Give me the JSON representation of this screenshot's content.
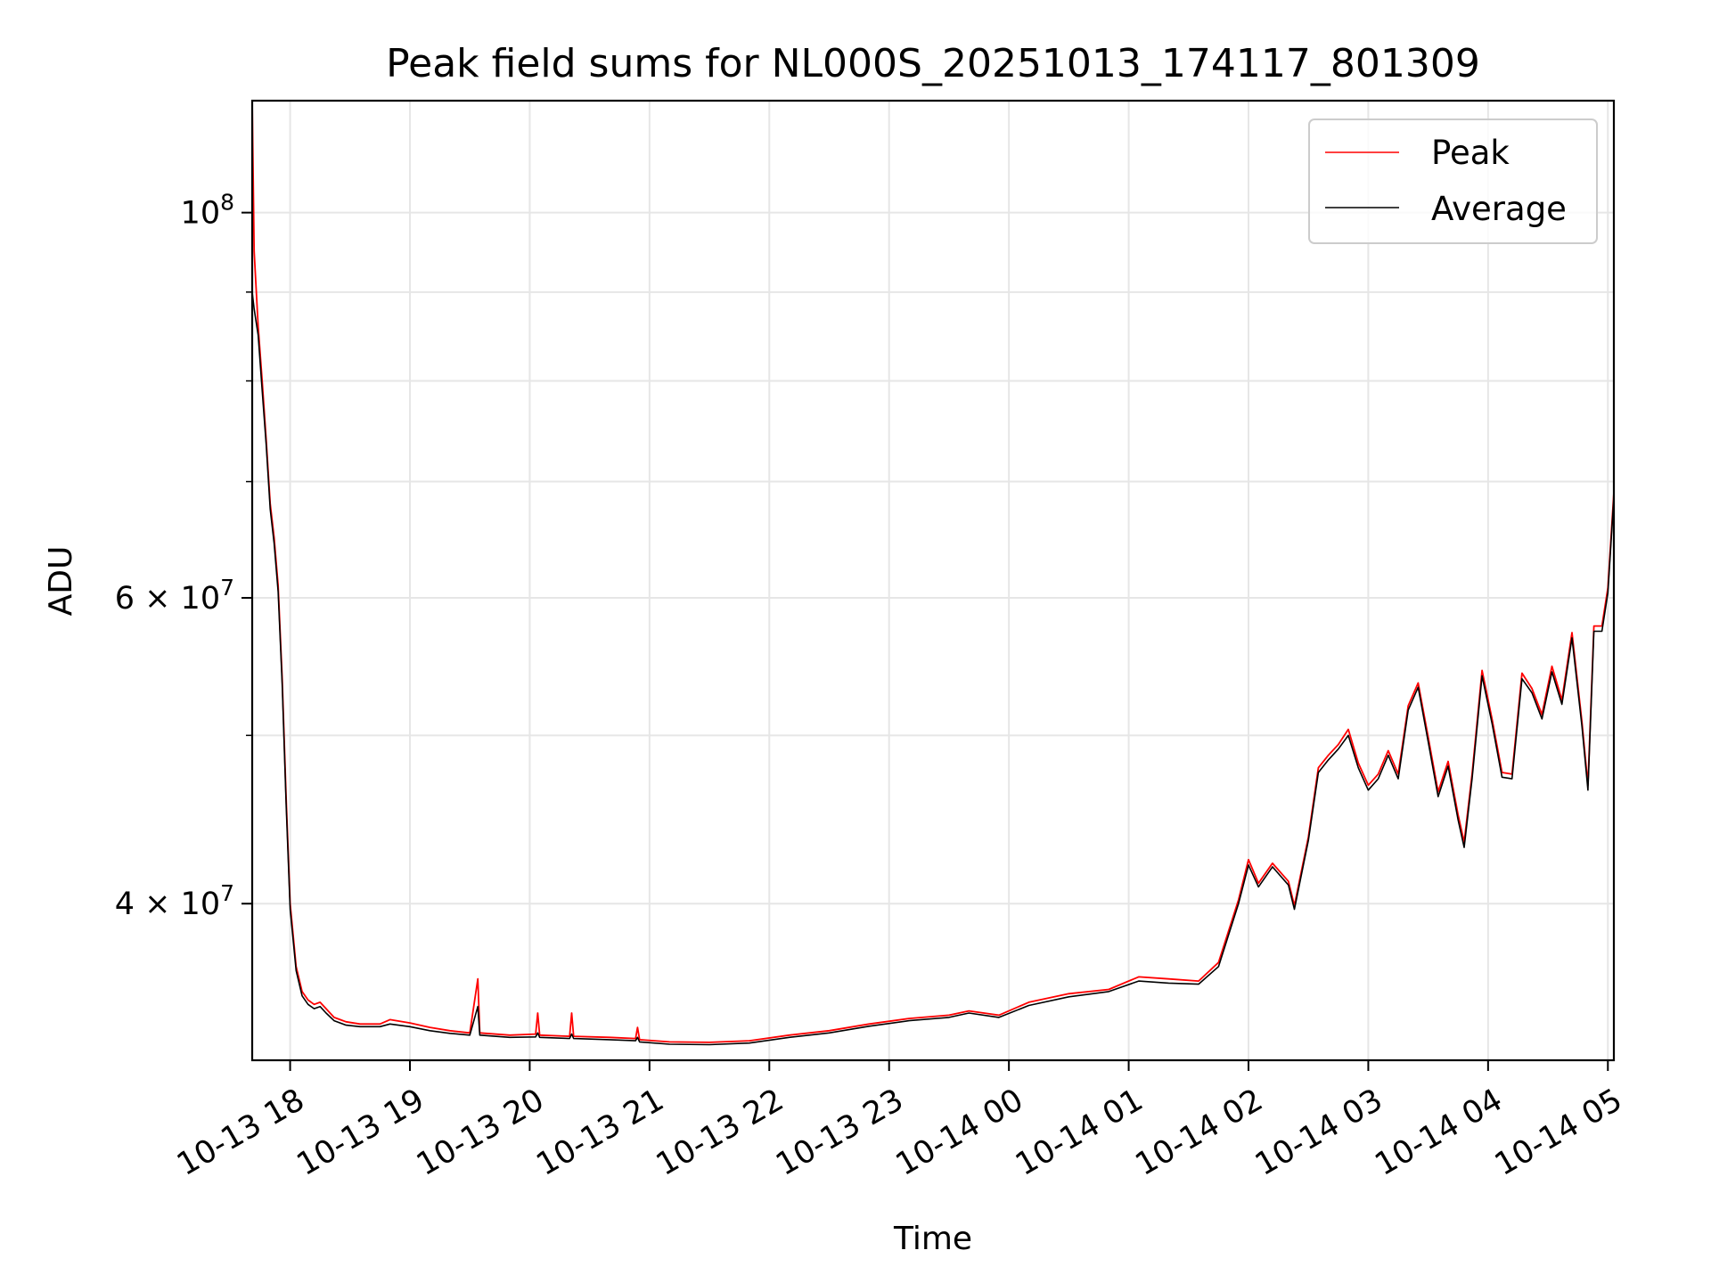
{
  "chart_data": {
    "type": "line",
    "title": "Peak field sums for NL000S_20251013_174117_801309",
    "xlabel": "Time",
    "ylabel": "ADU",
    "yscale": "log",
    "xlim": [
      "2025-10-13 17:41",
      "2025-10-14 05:03"
    ],
    "ylim": [
      32500000,
      116000000
    ],
    "grid": true,
    "legend_position": "top-right",
    "x_ticks": [
      "10-13 18",
      "10-13 19",
      "10-13 20",
      "10-13 21",
      "10-13 22",
      "10-13 23",
      "10-14 00",
      "10-14 01",
      "10-14 02",
      "10-14 03",
      "10-14 04",
      "10-14 05"
    ],
    "y_major_ticks": [
      {
        "value": 100000000,
        "mantissa": "",
        "base": "10",
        "exp": "8"
      },
      {
        "value": 60000000,
        "mantissa": "6",
        "base": "10",
        "exp": "7"
      },
      {
        "value": 40000000,
        "mantissa": "4",
        "base": "10",
        "exp": "7"
      }
    ],
    "y_minor_ticks": [
      50000000,
      70000000,
      80000000,
      90000000
    ],
    "series": [
      {
        "name": "Peak",
        "color": "#ff0000",
        "points": [
          [
            "2025-10-13 17:41",
            116000000
          ],
          [
            "2025-10-13 17:42",
            95000000
          ],
          [
            "2025-10-13 17:44",
            86000000
          ],
          [
            "2025-10-13 17:46",
            80000000
          ],
          [
            "2025-10-13 17:48",
            74000000
          ],
          [
            "2025-10-13 17:50",
            68000000
          ],
          [
            "2025-10-13 17:52",
            65000000
          ],
          [
            "2025-10-13 17:54",
            61000000
          ],
          [
            "2025-10-13 17:56",
            54000000
          ],
          [
            "2025-10-13 17:58",
            46000000
          ],
          [
            "2025-10-13 18:00",
            40000000
          ],
          [
            "2025-10-13 18:03",
            36800000
          ],
          [
            "2025-10-13 18:06",
            35600000
          ],
          [
            "2025-10-13 18:09",
            35200000
          ],
          [
            "2025-10-13 18:12",
            35000000
          ],
          [
            "2025-10-13 18:15",
            35100000
          ],
          [
            "2025-10-13 18:18",
            34800000
          ],
          [
            "2025-10-13 18:22",
            34400000
          ],
          [
            "2025-10-13 18:28",
            34200000
          ],
          [
            "2025-10-13 18:35",
            34100000
          ],
          [
            "2025-10-13 18:45",
            34100000
          ],
          [
            "2025-10-13 18:50",
            34300000
          ],
          [
            "2025-10-13 19:00",
            34150000
          ],
          [
            "2025-10-13 19:10",
            33950000
          ],
          [
            "2025-10-13 19:20",
            33800000
          ],
          [
            "2025-10-13 19:30",
            33700000
          ],
          [
            "2025-10-13 19:34",
            36200000
          ],
          [
            "2025-10-13 19:35",
            33700000
          ],
          [
            "2025-10-13 19:50",
            33600000
          ],
          [
            "2025-10-13 20:03",
            33650000
          ],
          [
            "2025-10-13 20:04",
            34600000
          ],
          [
            "2025-10-13 20:05",
            33600000
          ],
          [
            "2025-10-13 20:20",
            33550000
          ],
          [
            "2025-10-13 20:21",
            34600000
          ],
          [
            "2025-10-13 20:22",
            33550000
          ],
          [
            "2025-10-13 20:40",
            33500000
          ],
          [
            "2025-10-13 20:53",
            33450000
          ],
          [
            "2025-10-13 20:54",
            33950000
          ],
          [
            "2025-10-13 20:55",
            33400000
          ],
          [
            "2025-10-13 21:10",
            33300000
          ],
          [
            "2025-10-13 21:30",
            33280000
          ],
          [
            "2025-10-13 21:50",
            33350000
          ],
          [
            "2025-10-13 22:10",
            33600000
          ],
          [
            "2025-10-13 22:30",
            33800000
          ],
          [
            "2025-10-13 22:50",
            34100000
          ],
          [
            "2025-10-13 23:10",
            34350000
          ],
          [
            "2025-10-13 23:30",
            34500000
          ],
          [
            "2025-10-13 23:40",
            34700000
          ],
          [
            "2025-10-13 23:55",
            34500000
          ],
          [
            "2025-10-14 00:10",
            35100000
          ],
          [
            "2025-10-14 00:30",
            35500000
          ],
          [
            "2025-10-14 00:50",
            35700000
          ],
          [
            "2025-10-14 01:05",
            36300000
          ],
          [
            "2025-10-14 01:20",
            36200000
          ],
          [
            "2025-10-14 01:35",
            36100000
          ],
          [
            "2025-10-14 01:45",
            37000000
          ],
          [
            "2025-10-14 01:55",
            40200000
          ],
          [
            "2025-10-14 02:00",
            42400000
          ],
          [
            "2025-10-14 02:05",
            41100000
          ],
          [
            "2025-10-14 02:12",
            42200000
          ],
          [
            "2025-10-14 02:20",
            41200000
          ],
          [
            "2025-10-14 02:23",
            39900000
          ],
          [
            "2025-10-14 02:30",
            43700000
          ],
          [
            "2025-10-14 02:35",
            47900000
          ],
          [
            "2025-10-14 02:40",
            48700000
          ],
          [
            "2025-10-14 02:45",
            49400000
          ],
          [
            "2025-10-14 02:50",
            50400000
          ],
          [
            "2025-10-14 02:55",
            48200000
          ],
          [
            "2025-10-14 03:00",
            46800000
          ],
          [
            "2025-10-14 03:05",
            47500000
          ],
          [
            "2025-10-14 03:10",
            49000000
          ],
          [
            "2025-10-14 03:15",
            47500000
          ],
          [
            "2025-10-14 03:20",
            52000000
          ],
          [
            "2025-10-14 03:25",
            53600000
          ],
          [
            "2025-10-14 03:30",
            49900000
          ],
          [
            "2025-10-14 03:35",
            46400000
          ],
          [
            "2025-10-14 03:40",
            48300000
          ],
          [
            "2025-10-14 03:45",
            45000000
          ],
          [
            "2025-10-14 03:48",
            43400000
          ],
          [
            "2025-10-14 03:52",
            47500000
          ],
          [
            "2025-10-14 03:57",
            54500000
          ],
          [
            "2025-10-14 04:02",
            51100000
          ],
          [
            "2025-10-14 04:07",
            47600000
          ],
          [
            "2025-10-14 04:12",
            47500000
          ],
          [
            "2025-10-14 04:17",
            54300000
          ],
          [
            "2025-10-14 04:22",
            53200000
          ],
          [
            "2025-10-14 04:27",
            51400000
          ],
          [
            "2025-10-14 04:32",
            54800000
          ],
          [
            "2025-10-14 04:37",
            52400000
          ],
          [
            "2025-10-14 04:42",
            57300000
          ],
          [
            "2025-10-14 04:47",
            50900000
          ],
          [
            "2025-10-14 04:50",
            46800000
          ],
          [
            "2025-10-14 04:53",
            57800000
          ],
          [
            "2025-10-14 04:57",
            57800000
          ],
          [
            "2025-10-14 05:00",
            60800000
          ],
          [
            "2025-10-14 05:03",
            69000000
          ]
        ]
      },
      {
        "name": "Average",
        "color": "#000000",
        "points": [
          [
            "2025-10-13 17:41",
            90000000
          ],
          [
            "2025-10-13 17:42",
            88000000
          ],
          [
            "2025-10-13 17:44",
            85000000
          ],
          [
            "2025-10-13 17:46",
            79000000
          ],
          [
            "2025-10-13 17:48",
            73500000
          ],
          [
            "2025-10-13 17:50",
            67500000
          ],
          [
            "2025-10-13 17:52",
            64500000
          ],
          [
            "2025-10-13 17:54",
            60500000
          ],
          [
            "2025-10-13 17:56",
            53600000
          ],
          [
            "2025-10-13 17:58",
            45600000
          ],
          [
            "2025-10-13 18:00",
            39700000
          ],
          [
            "2025-10-13 18:03",
            36600000
          ],
          [
            "2025-10-13 18:06",
            35400000
          ],
          [
            "2025-10-13 18:09",
            35000000
          ],
          [
            "2025-10-13 18:12",
            34800000
          ],
          [
            "2025-10-13 18:15",
            34900000
          ],
          [
            "2025-10-13 18:18",
            34600000
          ],
          [
            "2025-10-13 18:22",
            34250000
          ],
          [
            "2025-10-13 18:28",
            34050000
          ],
          [
            "2025-10-13 18:35",
            33980000
          ],
          [
            "2025-10-13 18:45",
            33980000
          ],
          [
            "2025-10-13 18:50",
            34100000
          ],
          [
            "2025-10-13 19:00",
            33980000
          ],
          [
            "2025-10-13 19:10",
            33800000
          ],
          [
            "2025-10-13 19:20",
            33680000
          ],
          [
            "2025-10-13 19:30",
            33600000
          ],
          [
            "2025-10-13 19:34",
            34900000
          ],
          [
            "2025-10-13 19:35",
            33600000
          ],
          [
            "2025-10-13 19:50",
            33500000
          ],
          [
            "2025-10-13 20:03",
            33520000
          ],
          [
            "2025-10-13 20:04",
            33700000
          ],
          [
            "2025-10-13 20:05",
            33500000
          ],
          [
            "2025-10-13 20:20",
            33450000
          ],
          [
            "2025-10-13 20:21",
            33650000
          ],
          [
            "2025-10-13 20:22",
            33450000
          ],
          [
            "2025-10-13 20:40",
            33400000
          ],
          [
            "2025-10-13 20:53",
            33350000
          ],
          [
            "2025-10-13 20:54",
            33500000
          ],
          [
            "2025-10-13 20:55",
            33300000
          ],
          [
            "2025-10-13 21:10",
            33200000
          ],
          [
            "2025-10-13 21:30",
            33180000
          ],
          [
            "2025-10-13 21:50",
            33250000
          ],
          [
            "2025-10-13 22:10",
            33500000
          ],
          [
            "2025-10-13 22:30",
            33700000
          ],
          [
            "2025-10-13 22:50",
            34000000
          ],
          [
            "2025-10-13 23:10",
            34250000
          ],
          [
            "2025-10-13 23:30",
            34400000
          ],
          [
            "2025-10-13 23:40",
            34600000
          ],
          [
            "2025-10-13 23:55",
            34400000
          ],
          [
            "2025-10-14 00:10",
            34950000
          ],
          [
            "2025-10-14 00:30",
            35350000
          ],
          [
            "2025-10-14 00:50",
            35600000
          ],
          [
            "2025-10-14 01:05",
            36100000
          ],
          [
            "2025-10-14 01:20",
            36000000
          ],
          [
            "2025-10-14 01:35",
            35950000
          ],
          [
            "2025-10-14 01:45",
            36800000
          ],
          [
            "2025-10-14 01:55",
            40000000
          ],
          [
            "2025-10-14 02:00",
            42100000
          ],
          [
            "2025-10-14 02:05",
            40900000
          ],
          [
            "2025-10-14 02:12",
            42000000
          ],
          [
            "2025-10-14 02:20",
            41000000
          ],
          [
            "2025-10-14 02:23",
            39700000
          ],
          [
            "2025-10-14 02:30",
            43500000
          ],
          [
            "2025-10-14 02:35",
            47600000
          ],
          [
            "2025-10-14 02:40",
            48400000
          ],
          [
            "2025-10-14 02:45",
            49100000
          ],
          [
            "2025-10-14 02:50",
            50000000
          ],
          [
            "2025-10-14 02:55",
            47900000
          ],
          [
            "2025-10-14 03:00",
            46500000
          ],
          [
            "2025-10-14 03:05",
            47200000
          ],
          [
            "2025-10-14 03:10",
            48700000
          ],
          [
            "2025-10-14 03:15",
            47200000
          ],
          [
            "2025-10-14 03:20",
            51700000
          ],
          [
            "2025-10-14 03:25",
            53300000
          ],
          [
            "2025-10-14 03:30",
            49600000
          ],
          [
            "2025-10-14 03:35",
            46100000
          ],
          [
            "2025-10-14 03:40",
            48000000
          ],
          [
            "2025-10-14 03:45",
            44700000
          ],
          [
            "2025-10-14 03:48",
            43100000
          ],
          [
            "2025-10-14 03:52",
            47200000
          ],
          [
            "2025-10-14 03:57",
            54100000
          ],
          [
            "2025-10-14 04:02",
            50800000
          ],
          [
            "2025-10-14 04:07",
            47300000
          ],
          [
            "2025-10-14 04:12",
            47200000
          ],
          [
            "2025-10-14 04:17",
            53900000
          ],
          [
            "2025-10-14 04:22",
            52900000
          ],
          [
            "2025-10-14 04:27",
            51100000
          ],
          [
            "2025-10-14 04:32",
            54400000
          ],
          [
            "2025-10-14 04:37",
            52100000
          ],
          [
            "2025-10-14 04:42",
            56900000
          ],
          [
            "2025-10-14 04:47",
            50600000
          ],
          [
            "2025-10-14 04:50",
            46500000
          ],
          [
            "2025-10-14 04:53",
            57400000
          ],
          [
            "2025-10-14 04:57",
            57400000
          ],
          [
            "2025-10-14 05:00",
            60400000
          ],
          [
            "2025-10-14 05:03",
            68600000
          ]
        ]
      }
    ]
  }
}
